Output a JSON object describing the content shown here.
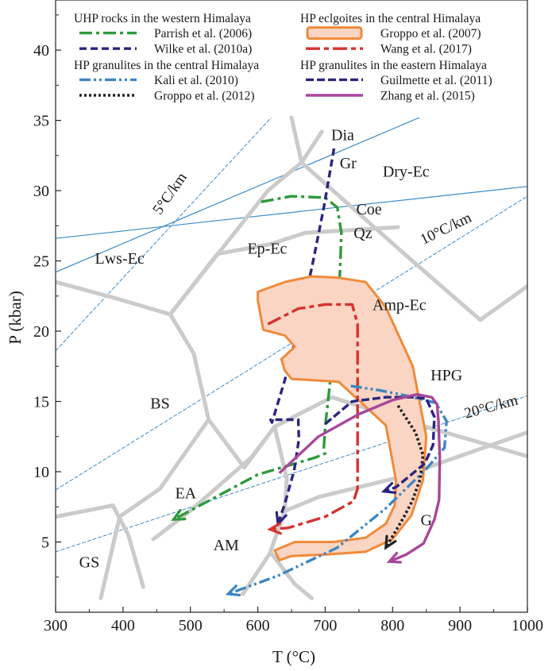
{
  "chart_data": {
    "type": "line",
    "title": "",
    "xlabel": "T (°C)",
    "ylabel": "P (kbar)",
    "xlim": [
      300,
      1000
    ],
    "ylim": [
      0,
      43
    ],
    "x_ticks": [
      300,
      400,
      500,
      600,
      700,
      800,
      900,
      1000
    ],
    "y_ticks": [
      5,
      10,
      15,
      20,
      25,
      30,
      35,
      40
    ],
    "grid": false,
    "legend": {
      "placement": "top",
      "groups": [
        {
          "heading": "UHP rocks in the western Himalaya",
          "entries": [
            {
              "label": "Parrish et al. (2006)",
              "color": "#2e9a3c",
              "style": "dashdot"
            },
            {
              "label": "Wilke et al. (2010a)",
              "color": "#2b2580",
              "style": "dashed"
            }
          ]
        },
        {
          "heading": "HP eclgoites in the central Himalaya",
          "entries": [
            {
              "label": "Groppo et al. (2007)",
              "color": "#f08a3a",
              "fill": "#fad5c3",
              "style": "band"
            },
            {
              "label": "Wang et al. (2017)",
              "color": "#d6322e",
              "style": "longdash"
            }
          ]
        },
        {
          "heading": "HP granulites in the central Himalaya",
          "entries": [
            {
              "label": "Kali et al. (2010)",
              "color": "#3e86c4",
              "style": "dashdotdot"
            },
            {
              "label": "Groppo et al. (2012)",
              "color": "#222222",
              "style": "dotted"
            }
          ]
        },
        {
          "heading": "HP granulites in the eastern Himalaya",
          "entries": [
            {
              "label": "Guilmette et al. (2011)",
              "color": "#2b2580",
              "style": "dashed-heavy"
            },
            {
              "label": "Zhang et al. (2015)",
              "color": "#a8479a",
              "style": "solid"
            }
          ]
        }
      ]
    },
    "facies_labels": [
      {
        "text": "Dry-Ec",
        "x": 820,
        "y": 31.0
      },
      {
        "text": "Ep-Ec",
        "x": 614,
        "y": 25.5
      },
      {
        "text": "Lws-Ec",
        "x": 395,
        "y": 24.8
      },
      {
        "text": "Amp-Ec",
        "x": 810,
        "y": 21.5
      },
      {
        "text": "HPG",
        "x": 880,
        "y": 16.5
      },
      {
        "text": "BS",
        "x": 455,
        "y": 14.5
      },
      {
        "text": "EA",
        "x": 493,
        "y": 8.1
      },
      {
        "text": "AM",
        "x": 553,
        "y": 4.4
      },
      {
        "text": "GS",
        "x": 350,
        "y": 3.2
      },
      {
        "text": "G",
        "x": 850,
        "y": 6.2
      }
    ],
    "reaction_labels": [
      {
        "text": "Dia",
        "x": 726,
        "y": 33.6
      },
      {
        "text": "Gr",
        "x": 734,
        "y": 31.6
      },
      {
        "text": "Coe",
        "x": 765,
        "y": 28.3
      },
      {
        "text": "Qz",
        "x": 756,
        "y": 26.6
      }
    ],
    "geotherm_labels": [
      {
        "text": "5°C/km",
        "x": 475,
        "y": 29.6,
        "angle": -55
      },
      {
        "text": "10°C/km",
        "x": 882,
        "y": 27.0,
        "angle": -26
      },
      {
        "text": "20°C/km",
        "x": 948,
        "y": 14.3,
        "angle": -15
      }
    ],
    "geotherms": [
      {
        "name": "5°C/km",
        "points": [
          [
            300,
            18.6
          ],
          [
            620,
            35.2
          ]
        ]
      },
      {
        "name": "10°C/km",
        "points": [
          [
            300,
            8.7
          ],
          [
            1000,
            29.6
          ]
        ]
      },
      {
        "name": "20°C/km",
        "points": [
          [
            300,
            4.3
          ],
          [
            1000,
            15.4
          ]
        ]
      }
    ],
    "reaction_lines": [
      {
        "name": "Dia/Gr",
        "points": [
          [
            300,
            24.2
          ],
          [
            840,
            35.2
          ]
        ]
      },
      {
        "name": "Coe/Qz",
        "points": [
          [
            300,
            26.6
          ],
          [
            1000,
            30.3
          ]
        ]
      }
    ],
    "facies_boundaries": [
      [
        [
          300,
          23.5
        ],
        [
          385,
          22.4
        ],
        [
          470,
          21.2
        ]
      ],
      [
        [
          470,
          21.2
        ],
        [
          540,
          25.5
        ],
        [
          620,
          26.2
        ],
        [
          670,
          27.0
        ],
        [
          808,
          27.4
        ]
      ],
      [
        [
          470,
          21.2
        ],
        [
          615,
          30.0
        ],
        [
          665,
          32.0
        ],
        [
          695,
          34.2
        ]
      ],
      [
        [
          665,
          32.0
        ],
        [
          650,
          35.2
        ]
      ],
      [
        [
          665,
          32.0
        ],
        [
          815,
          25.6
        ],
        [
          930,
          20.8
        ],
        [
          1000,
          23.2
        ]
      ],
      [
        [
          470,
          21.2
        ],
        [
          505,
          18.4
        ],
        [
          527,
          13.7
        ],
        [
          580,
          10.3
        ],
        [
          625,
          13.2
        ],
        [
          710,
          15.3
        ],
        [
          820,
          13.6
        ],
        [
          1000,
          11.1
        ]
      ],
      [
        [
          625,
          13.2
        ],
        [
          590,
          11.0
        ],
        [
          497,
          7.1
        ],
        [
          445,
          5.2
        ]
      ],
      [
        [
          625,
          13.2
        ],
        [
          643,
          9.5
        ],
        [
          640,
          7.2
        ],
        [
          618,
          4.2
        ],
        [
          578,
          1.3
        ]
      ],
      [
        [
          527,
          13.7
        ],
        [
          455,
          8.8
        ],
        [
          395,
          6.8
        ],
        [
          367,
          1.0
        ]
      ],
      [
        [
          300,
          6.8
        ],
        [
          385,
          7.6
        ],
        [
          408,
          5.5
        ],
        [
          430,
          1.8
        ]
      ],
      [
        [
          640,
          7.2
        ],
        [
          690,
          8.2
        ],
        [
          810,
          9.6
        ],
        [
          1000,
          12.8
        ]
      ],
      [
        [
          620,
          4.2
        ],
        [
          655,
          2.0
        ],
        [
          680,
          1.0
        ]
      ]
    ],
    "series": [
      {
        "name": "Parrish et al. (2006)",
        "color": "#2e9a3c",
        "style": "dashdot",
        "x": [
          605,
          650,
          700,
          718,
          724,
          722,
          718,
          708,
          700,
          698,
          700,
          685,
          600,
          475
        ],
        "y": [
          29.2,
          29.6,
          29.5,
          28.8,
          27.0,
          24.3,
          21.1,
          16.7,
          13.2,
          11.7,
          11.3,
          11.0,
          9.8,
          6.6
        ],
        "arrow": true
      },
      {
        "name": "Wilke et al. (2010a)",
        "color": "#2b2580",
        "style": "dashed",
        "x": [
          713,
          698,
          680,
          660,
          640,
          621,
          619,
          620,
          660,
          661,
          654,
          640,
          630
        ],
        "y": [
          33.0,
          28.8,
          24.5,
          20.2,
          16.5,
          13.5,
          13.7,
          13.7,
          13.7,
          12.3,
          10.1,
          7.7,
          6.3
        ],
        "arrow": true
      },
      {
        "name": "Groppo et al. (2007)",
        "color": "#f08a3a",
        "fill": "#fad5c3",
        "style": "band",
        "x": [
          608,
          600,
          600,
          640,
          680,
          720,
          760,
          790,
          830,
          850,
          845,
          828,
          800,
          760,
          700,
          650,
          632,
          625,
          655,
          712,
          760,
          790,
          803,
          805,
          790,
          720,
          650,
          640,
          635,
          655,
          640,
          608
        ],
        "y": [
          20.1,
          22.2,
          22.8,
          23.5,
          23.9,
          23.8,
          23.5,
          21.7,
          17.5,
          12.5,
          9.4,
          6.9,
          5.2,
          4.3,
          4.1,
          4.0,
          3.7,
          4.4,
          5.0,
          5.0,
          5.3,
          6.3,
          7.6,
          9.4,
          13.3,
          16.4,
          16.6,
          17.2,
          18.0,
          18.9,
          19.7,
          20.1
        ],
        "arrow": true
      },
      {
        "name": "Wang et al. (2017)",
        "color": "#d6322e",
        "style": "longdash",
        "x": [
          615,
          660,
          700,
          740,
          748,
          748,
          748,
          742,
          700,
          645,
          618
        ],
        "y": [
          20.5,
          21.6,
          21.9,
          21.9,
          20.5,
          14.5,
          8.8,
          7.9,
          6.8,
          6.0,
          5.9
        ],
        "arrow": true
      },
      {
        "name": "Kali et al. (2010)",
        "color": "#3e86c4",
        "style": "dashdotdot",
        "x": [
          738,
          780,
          822,
          864,
          880,
          877,
          850,
          790,
          718,
          630,
          556
        ],
        "y": [
          16.1,
          15.8,
          15.4,
          14.9,
          13.6,
          11.7,
          10.2,
          7.4,
          4.6,
          2.6,
          1.3
        ],
        "arrow": true
      },
      {
        "name": "Groppo et al. (2012)",
        "color": "#222222",
        "style": "dotted",
        "x": [
          808,
          834,
          845,
          841,
          829,
          817,
          806,
          790
        ],
        "y": [
          14.7,
          12.8,
          11.2,
          9.5,
          7.9,
          6.8,
          5.9,
          4.6
        ],
        "arrow": true
      },
      {
        "name": "Guilmette et al. (2011)",
        "color": "#2b2580",
        "style": "dashed-heavy",
        "x": [
          700,
          740,
          790,
          830,
          850,
          862,
          860,
          848,
          828,
          805,
          787
        ],
        "y": [
          13.4,
          15.0,
          15.3,
          15.3,
          15.2,
          13.9,
          11.9,
          10.6,
          9.8,
          8.9,
          8.6
        ],
        "arrow": true
      },
      {
        "name": "Zhang et al. (2015)",
        "color": "#a8479a",
        "style": "solid",
        "x": [
          632,
          690,
          750,
          800,
          836,
          858,
          866,
          868,
          870,
          869,
          862,
          846,
          820,
          795
        ],
        "y": [
          9.9,
          12.5,
          14.1,
          15.1,
          15.5,
          15.3,
          14.8,
          13.6,
          11.0,
          8.0,
          6.6,
          4.9,
          4.1,
          3.6
        ],
        "arrow": true
      }
    ]
  }
}
